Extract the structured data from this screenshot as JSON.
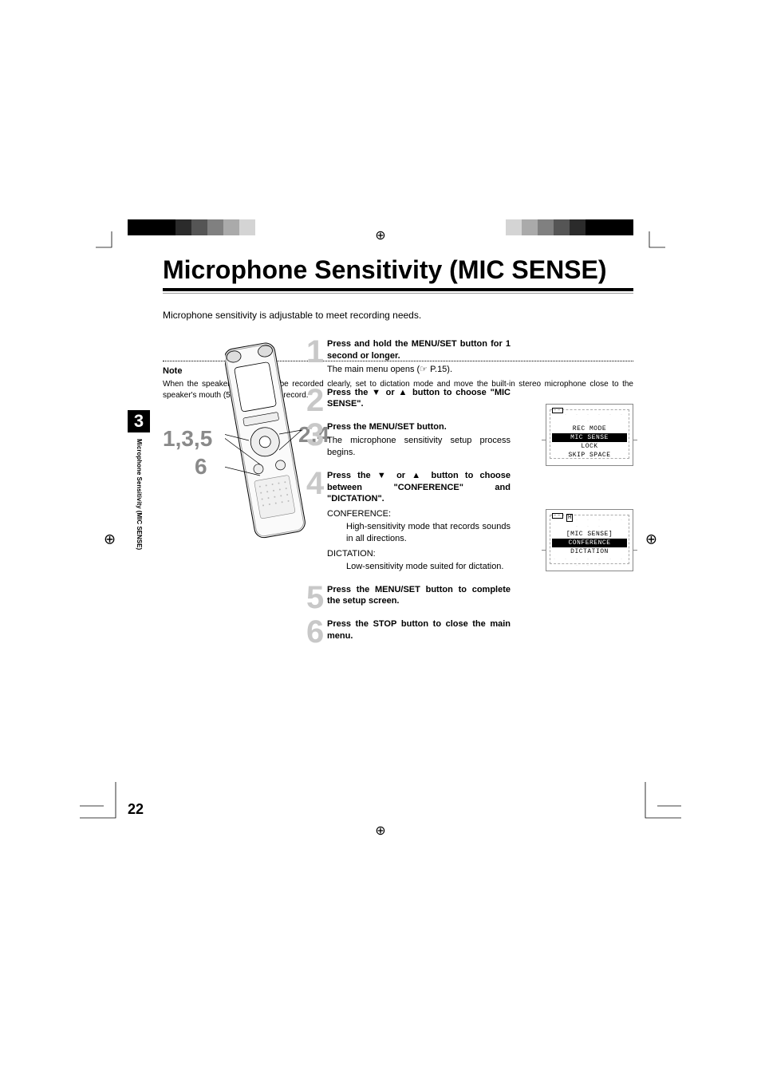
{
  "chapter": {
    "number": "3",
    "label": "Microphone Sensitivity (MIC SENSE)"
  },
  "title": "Microphone Sensitivity (MIC SENSE)",
  "intro": "Microphone sensitivity is adjustable to meet recording needs.",
  "callouts": {
    "c135": "1,3,5",
    "c6": "6",
    "c24": "2,4"
  },
  "steps": [
    {
      "num": "1",
      "bold_a": "Press and hold the ",
      "bold_key": "MENU/SET",
      "bold_b": " button for 1 second or longer.",
      "body": "The main menu opens (☞ P.15)."
    },
    {
      "num": "2",
      "bold_a": "Press the ▼ or ▲ button to choose \"MIC SENSE\".",
      "bold_key": "",
      "bold_b": "",
      "body": ""
    },
    {
      "num": "3",
      "bold_a": "Press the ",
      "bold_key": "MENU/SET",
      "bold_b": "  button.",
      "body": "The microphone sensitivity setup process begins."
    },
    {
      "num": "4",
      "bold_a": "Press the ▼ or ▲ button to choose between \"CONFERENCE\" and \"DICTATION\".",
      "bold_key": "",
      "bold_b": "",
      "body": "",
      "subs": [
        {
          "label": "CONFERENCE:",
          "desc": "High-sensitivity mode that records sounds in all directions."
        },
        {
          "label": "DICTATION:",
          "desc": "Low-sensitivity mode suited for dictation."
        }
      ]
    },
    {
      "num": "5",
      "bold_a": "Press the ",
      "bold_key": "MENU/SET",
      "bold_b": "  button to complete the setup screen.",
      "body": ""
    },
    {
      "num": "6",
      "bold_a": "Press the ",
      "bold_key": "STOP",
      "bold_b": " button to close the main menu.",
      "body": ""
    }
  ],
  "lcd1": {
    "lines": [
      "REC MODE",
      "MIC SENSE",
      "LOCK",
      "SKIP SPACE"
    ],
    "highlight_index": 1,
    "batt": true
  },
  "lcd2": {
    "header": "[MIC SENSE]",
    "lines": [
      "CONFERENCE",
      "DICTATION"
    ],
    "highlight_index": 0,
    "batt": true,
    "icon": "H"
  },
  "note": {
    "heading": "Note",
    "body": "When the speakers voice is to be recorded clearly, set to dictation mode and move the built-in stereo microphone close to the speaker's mouth (5 to 10 cm) and record."
  },
  "page_number": "22",
  "print": {
    "colors_left": [
      "#000000",
      "#000000",
      "#000000",
      "#2b2b2b",
      "#555555",
      "#808080",
      "#aaaaaa",
      "#d4d4d4"
    ],
    "colors_right": [
      "#000000",
      "#000000",
      "#000000",
      "#2b2b2b",
      "#555555",
      "#808080",
      "#aaaaaa",
      "#d4d4d4"
    ],
    "registration_glyph": "⊕"
  },
  "style": {
    "title_fontsize": 32,
    "step_num_color": "#c8c8c8",
    "callout_color": "#8a8a8a",
    "underline_color": "#000000",
    "lcd_border": "#888888"
  }
}
